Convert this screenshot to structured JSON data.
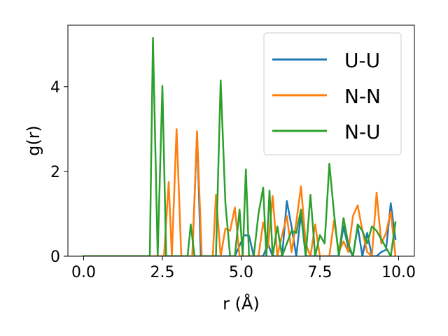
{
  "chart_data": {
    "type": "line",
    "title": "",
    "xlabel": "r (Å)",
    "ylabel": "g(r)",
    "xlim": [
      -0.5,
      10.5
    ],
    "ylim": [
      0,
      5.45
    ],
    "xticks": [
      0.0,
      2.5,
      5.0,
      7.5,
      10.0
    ],
    "xtick_labels": [
      "0.0",
      "2.5",
      "5.0",
      "7.5",
      "10.0"
    ],
    "yticks": [
      0,
      2,
      4
    ],
    "ytick_labels": [
      "0",
      "2",
      "4"
    ],
    "grid": false,
    "legend_position": "top-right",
    "series": [
      {
        "name": "U-U",
        "color": "#1f77b4",
        "points": [
          [
            0,
            0
          ],
          [
            3.3,
            0
          ],
          [
            3.45,
            0
          ],
          [
            3.6,
            2.9
          ],
          [
            3.72,
            0
          ],
          [
            4.8,
            0
          ],
          [
            5.1,
            0.5
          ],
          [
            5.25,
            0.48
          ],
          [
            5.4,
            0
          ],
          [
            5.7,
            0
          ],
          [
            5.85,
            0.3
          ],
          [
            6.0,
            0
          ],
          [
            6.3,
            0
          ],
          [
            6.45,
            1.3
          ],
          [
            6.6,
            0.7
          ],
          [
            6.75,
            0
          ],
          [
            6.9,
            1.0
          ],
          [
            7.05,
            0
          ],
          [
            7.5,
            0
          ],
          [
            7.65,
            0
          ],
          [
            7.8,
            0
          ],
          [
            8.1,
            0
          ],
          [
            8.25,
            0.7
          ],
          [
            8.4,
            0.2
          ],
          [
            8.55,
            0
          ],
          [
            8.7,
            0.7
          ],
          [
            8.85,
            0
          ],
          [
            9.0,
            0.55
          ],
          [
            9.15,
            0
          ],
          [
            9.3,
            0
          ],
          [
            9.45,
            0.1
          ],
          [
            9.6,
            0.15
          ],
          [
            9.75,
            1.25
          ],
          [
            9.9,
            0.4
          ]
        ]
      },
      {
        "name": "N-N",
        "color": "#ff7f0e",
        "points": [
          [
            0,
            0
          ],
          [
            2.55,
            0
          ],
          [
            2.7,
            1.75
          ],
          [
            2.8,
            0
          ],
          [
            2.95,
            3.0
          ],
          [
            3.1,
            0
          ],
          [
            3.45,
            0
          ],
          [
            3.6,
            2.95
          ],
          [
            3.75,
            0
          ],
          [
            4.1,
            0
          ],
          [
            4.2,
            1.45
          ],
          [
            4.35,
            0
          ],
          [
            4.5,
            0.65
          ],
          [
            4.65,
            0.6
          ],
          [
            4.8,
            1.15
          ],
          [
            4.95,
            0
          ],
          [
            5.1,
            0
          ],
          [
            5.4,
            0
          ],
          [
            5.55,
            0
          ],
          [
            5.7,
            0.8
          ],
          [
            5.85,
            0.2
          ],
          [
            6.0,
            1.42
          ],
          [
            6.15,
            0
          ],
          [
            6.3,
            0.5
          ],
          [
            6.45,
            0.95
          ],
          [
            6.6,
            0.1
          ],
          [
            6.75,
            0.8
          ],
          [
            6.9,
            1.65
          ],
          [
            7.05,
            0.3
          ],
          [
            7.2,
            0
          ],
          [
            7.35,
            0.75
          ],
          [
            7.5,
            0
          ],
          [
            7.65,
            0
          ],
          [
            7.8,
            0
          ],
          [
            7.95,
            0.85
          ],
          [
            8.1,
            0.1
          ],
          [
            8.25,
            0.35
          ],
          [
            8.4,
            0.1
          ],
          [
            8.55,
            0.95
          ],
          [
            8.7,
            1.2
          ],
          [
            8.85,
            0.6
          ],
          [
            9.0,
            0.1
          ],
          [
            9.15,
            0
          ],
          [
            9.3,
            1.5
          ],
          [
            9.45,
            0.3
          ],
          [
            9.6,
            0.55
          ],
          [
            9.75,
            1.05
          ],
          [
            9.9,
            0
          ]
        ]
      },
      {
        "name": "N-U",
        "color": "#2ca02c",
        "points": [
          [
            0,
            0
          ],
          [
            2.1,
            0
          ],
          [
            2.2,
            5.15
          ],
          [
            2.35,
            0
          ],
          [
            2.5,
            4.02
          ],
          [
            2.62,
            0
          ],
          [
            3.3,
            0
          ],
          [
            3.4,
            0.75
          ],
          [
            3.52,
            0
          ],
          [
            3.65,
            0
          ],
          [
            3.8,
            0
          ],
          [
            4.2,
            0
          ],
          [
            4.35,
            4.15
          ],
          [
            4.5,
            1.25
          ],
          [
            4.65,
            0
          ],
          [
            4.8,
            0
          ],
          [
            4.95,
            1.1
          ],
          [
            5.05,
            0
          ],
          [
            5.15,
            2.05
          ],
          [
            5.25,
            0
          ],
          [
            5.4,
            0
          ],
          [
            5.55,
            1.0
          ],
          [
            5.7,
            1.62
          ],
          [
            5.8,
            0
          ],
          [
            5.9,
            1.55
          ],
          [
            6.0,
            0
          ],
          [
            6.15,
            0.7
          ],
          [
            6.3,
            0
          ],
          [
            6.45,
            0.3
          ],
          [
            6.6,
            0.6
          ],
          [
            6.75,
            0.55
          ],
          [
            6.9,
            1.1
          ],
          [
            7.05,
            0
          ],
          [
            7.2,
            1.45
          ],
          [
            7.35,
            0
          ],
          [
            7.5,
            0.5
          ],
          [
            7.65,
            0.3
          ],
          [
            7.8,
            2.18
          ],
          [
            7.95,
            1.0
          ],
          [
            8.1,
            0
          ],
          [
            8.25,
            0.9
          ],
          [
            8.4,
            0.3
          ],
          [
            8.55,
            0
          ],
          [
            8.7,
            0.75
          ],
          [
            8.85,
            0.6
          ],
          [
            9.0,
            0.3
          ],
          [
            9.15,
            0.7
          ],
          [
            9.3,
            0.6
          ],
          [
            9.45,
            0.4
          ],
          [
            9.6,
            0.2
          ],
          [
            9.75,
            0
          ],
          [
            9.9,
            0.8
          ]
        ]
      }
    ]
  }
}
